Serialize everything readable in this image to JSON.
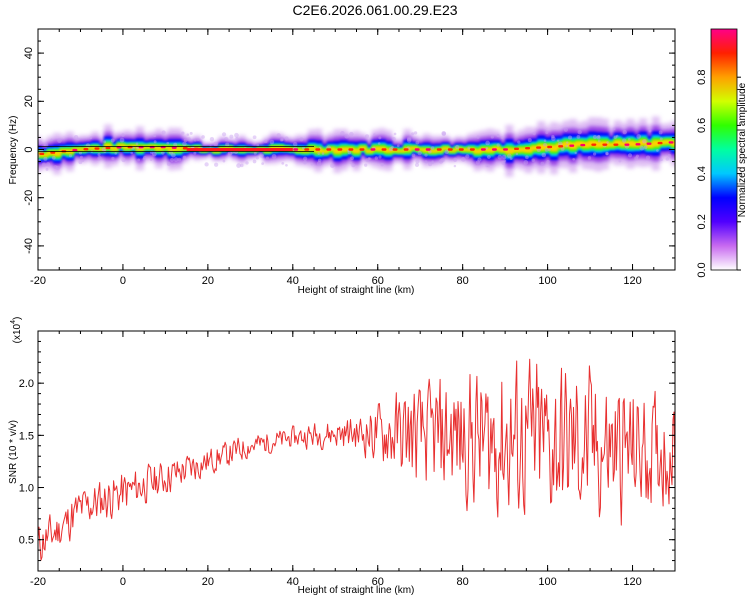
{
  "title": "C2E6.2026.061.00.29.E23",
  "chart_data": [
    {
      "type": "heatmap",
      "xlabel": "Height of straight line (km)",
      "ylabel": "Frequency (Hz)",
      "xlim": [
        -20,
        130
      ],
      "ylim": [
        -50,
        50
      ],
      "xticks": [
        -20,
        0,
        20,
        40,
        60,
        80,
        100,
        120
      ],
      "yticks": [
        -40,
        -20,
        0,
        20,
        40
      ],
      "colorbar": {
        "label": "Normalized spectral amplitude",
        "range": [
          0,
          1
        ],
        "ticks": [
          "0.0",
          "0.2",
          "0.4",
          "0.6",
          "0.8"
        ],
        "colors": [
          "#ffffff",
          "#c86af0",
          "#5000ff",
          "#0000ff",
          "#00c8ff",
          "#00ffa0",
          "#30ff00",
          "#d2ff00",
          "#ffa000",
          "#ff2000",
          "#ff0088"
        ]
      },
      "band_center_hz": [
        {
          "x": -20,
          "y": -2
        },
        {
          "x": -10,
          "y": 0
        },
        {
          "x": 0,
          "y": 1
        },
        {
          "x": 10,
          "y": 1
        },
        {
          "x": 20,
          "y": 0
        },
        {
          "x": 40,
          "y": 0
        },
        {
          "x": 60,
          "y": 0
        },
        {
          "x": 70,
          "y": 0
        },
        {
          "x": 80,
          "y": 0
        },
        {
          "x": 90,
          "y": 0
        },
        {
          "x": 100,
          "y": 1
        },
        {
          "x": 110,
          "y": 2
        },
        {
          "x": 120,
          "y": 2
        },
        {
          "x": 130,
          "y": 3
        }
      ],
      "reference_line_hz": 0
    },
    {
      "type": "line",
      "xlabel": "Height of straight line (km)",
      "ylabel": "SNR (10 * v/v)",
      "yscale_note": "(x10",
      "yscale_exp": "4",
      "xlim": [
        -20,
        130
      ],
      "ylim": [
        0.2,
        2.5
      ],
      "xticks": [
        -20,
        0,
        20,
        40,
        60,
        80,
        100,
        120
      ],
      "yticks": [
        "0.5",
        "1.0",
        "1.5",
        "2.0"
      ],
      "color": "#e83030",
      "trend": [
        {
          "x": -20,
          "y": 0.45
        },
        {
          "x": -15,
          "y": 0.6
        },
        {
          "x": -10,
          "y": 0.8
        },
        {
          "x": 0,
          "y": 0.95
        },
        {
          "x": 10,
          "y": 1.1
        },
        {
          "x": 20,
          "y": 1.25
        },
        {
          "x": 30,
          "y": 1.4
        },
        {
          "x": 40,
          "y": 1.48
        },
        {
          "x": 50,
          "y": 1.52
        },
        {
          "x": 60,
          "y": 1.52
        },
        {
          "x": 70,
          "y": 1.5
        },
        {
          "x": 80,
          "y": 1.48
        },
        {
          "x": 90,
          "y": 1.45
        },
        {
          "x": 100,
          "y": 1.42
        },
        {
          "x": 110,
          "y": 1.38
        },
        {
          "x": 120,
          "y": 1.35
        },
        {
          "x": 130,
          "y": 1.35
        }
      ],
      "spread": [
        {
          "x": -20,
          "y": 0.15
        },
        {
          "x": 0,
          "y": 0.15
        },
        {
          "x": 20,
          "y": 0.1
        },
        {
          "x": 40,
          "y": 0.07
        },
        {
          "x": 55,
          "y": 0.12
        },
        {
          "x": 65,
          "y": 0.3
        },
        {
          "x": 80,
          "y": 0.45
        },
        {
          "x": 95,
          "y": 0.6
        },
        {
          "x": 110,
          "y": 0.55
        },
        {
          "x": 130,
          "y": 0.35
        }
      ]
    }
  ]
}
